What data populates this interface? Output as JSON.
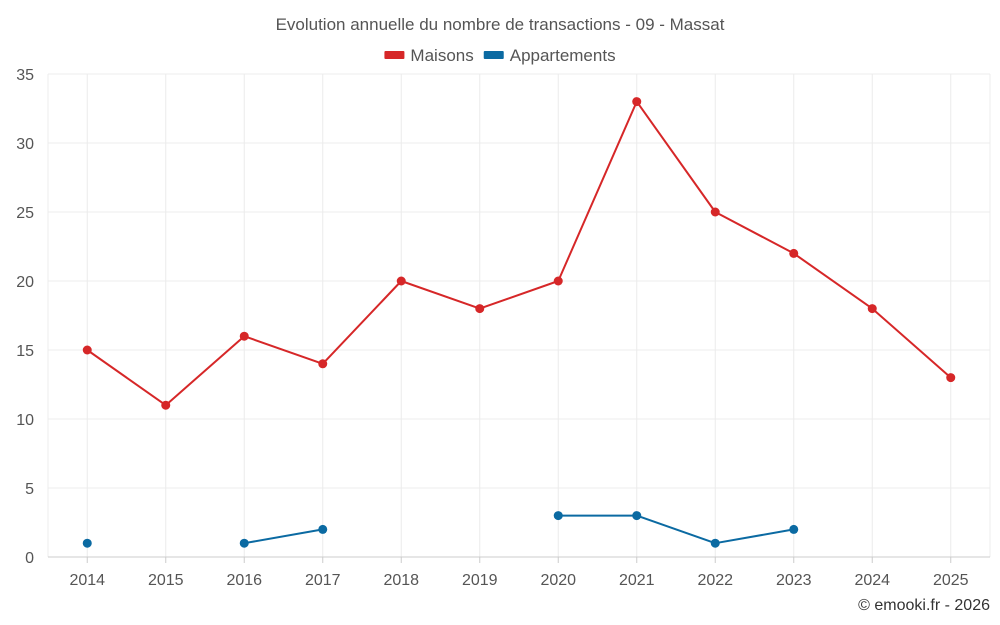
{
  "chart_data": {
    "type": "line",
    "title": "Evolution annuelle du nombre de transactions - 09 - Massat",
    "categories": [
      "2014",
      "2015",
      "2016",
      "2017",
      "2018",
      "2019",
      "2020",
      "2021",
      "2022",
      "2023",
      "2024",
      "2025"
    ],
    "ylim": [
      0,
      35
    ],
    "yticks": [
      0,
      5,
      10,
      15,
      20,
      25,
      30,
      35
    ],
    "grid": true,
    "legend_position": "top-center",
    "series": [
      {
        "name": "Maisons",
        "color": "#d62728",
        "values": [
          15,
          11,
          16,
          14,
          20,
          18,
          20,
          33,
          25,
          22,
          18,
          13
        ]
      },
      {
        "name": "Appartements",
        "color": "#0b6aa2",
        "values": [
          1,
          null,
          1,
          2,
          null,
          null,
          3,
          3,
          1,
          2,
          null,
          null
        ]
      }
    ],
    "xlabel": "",
    "ylabel": ""
  },
  "credit": "© emooki.fr - 2026"
}
